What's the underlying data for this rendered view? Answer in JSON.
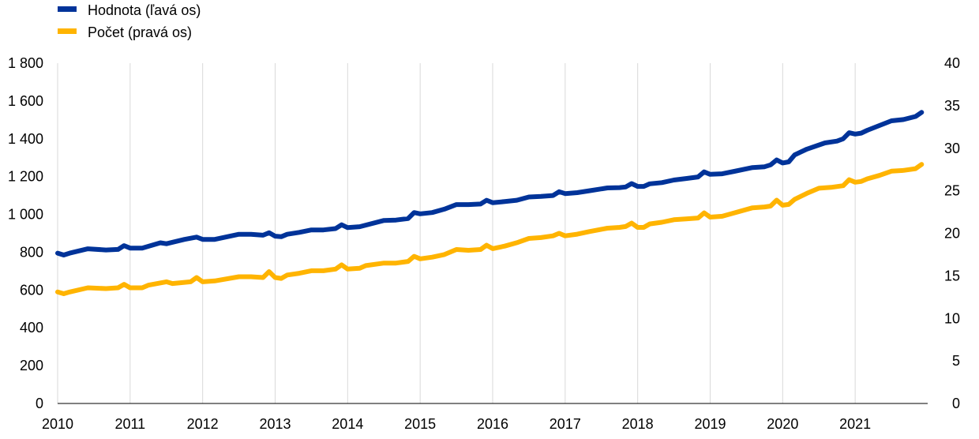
{
  "chart_data": {
    "type": "line",
    "title": "",
    "legend_position": "top-left",
    "grid": true,
    "x_axis": {
      "start_year": 2010,
      "end_year": 2022,
      "tick_labels": [
        "2010",
        "2011",
        "2012",
        "2013",
        "2014",
        "2015",
        "2016",
        "2017",
        "2018",
        "2019",
        "2020",
        "2021"
      ]
    },
    "y_left": {
      "ylim": [
        0,
        1800
      ],
      "tick_values": [
        0,
        200,
        400,
        600,
        800,
        1000,
        1200,
        1400,
        1600,
        1800
      ],
      "tick_labels": [
        "0",
        "200",
        "400",
        "600",
        "800",
        "1 000",
        "1 200",
        "1 400",
        "1 600",
        "1 800"
      ]
    },
    "y_right": {
      "ylim": [
        0,
        40
      ],
      "tick_values": [
        0,
        5,
        10,
        15,
        20,
        25,
        30,
        35,
        40
      ],
      "tick_labels": [
        "0",
        "5",
        "10",
        "15",
        "20",
        "25",
        "30",
        "35",
        "40"
      ]
    },
    "series": [
      {
        "name": "Hodnota (ľavá os)",
        "axis": "left",
        "color": "#003399",
        "points": [
          [
            "2010-01",
            795
          ],
          [
            "2010-02",
            785
          ],
          [
            "2010-03",
            795
          ],
          [
            "2010-06",
            818
          ],
          [
            "2010-09",
            812
          ],
          [
            "2010-11",
            815
          ],
          [
            "2010-12",
            835
          ],
          [
            "2011-01",
            822
          ],
          [
            "2011-03",
            822
          ],
          [
            "2011-06",
            850
          ],
          [
            "2011-07",
            845
          ],
          [
            "2011-10",
            868
          ],
          [
            "2011-12",
            880
          ],
          [
            "2012-01",
            868
          ],
          [
            "2012-03",
            868
          ],
          [
            "2012-07",
            895
          ],
          [
            "2012-09",
            895
          ],
          [
            "2012-11",
            890
          ],
          [
            "2012-12",
            903
          ],
          [
            "2013-01",
            885
          ],
          [
            "2013-02",
            882
          ],
          [
            "2013-03",
            895
          ],
          [
            "2013-05",
            905
          ],
          [
            "2013-07",
            918
          ],
          [
            "2013-09",
            918
          ],
          [
            "2013-11",
            925
          ],
          [
            "2013-12",
            945
          ],
          [
            "2014-01",
            930
          ],
          [
            "2014-03",
            935
          ],
          [
            "2014-07",
            968
          ],
          [
            "2014-09",
            970
          ],
          [
            "2014-11",
            978
          ],
          [
            "2014-12",
            1010
          ],
          [
            "2015-01",
            1003
          ],
          [
            "2015-03",
            1010
          ],
          [
            "2015-05",
            1028
          ],
          [
            "2015-07",
            1052
          ],
          [
            "2015-09",
            1052
          ],
          [
            "2015-11",
            1055
          ],
          [
            "2015-12",
            1075
          ],
          [
            "2016-01",
            1062
          ],
          [
            "2016-03",
            1068
          ],
          [
            "2016-05",
            1075
          ],
          [
            "2016-07",
            1092
          ],
          [
            "2016-09",
            1095
          ],
          [
            "2016-11",
            1100
          ],
          [
            "2016-12",
            1120
          ],
          [
            "2017-01",
            1110
          ],
          [
            "2017-03",
            1115
          ],
          [
            "2017-05",
            1125
          ],
          [
            "2017-08",
            1140
          ],
          [
            "2017-10",
            1142
          ],
          [
            "2017-11",
            1145
          ],
          [
            "2017-12",
            1163
          ],
          [
            "2018-01",
            1148
          ],
          [
            "2018-02",
            1148
          ],
          [
            "2018-03",
            1162
          ],
          [
            "2018-05",
            1168
          ],
          [
            "2018-07",
            1182
          ],
          [
            "2018-09",
            1190
          ],
          [
            "2018-11",
            1198
          ],
          [
            "2018-12",
            1225
          ],
          [
            "2019-01",
            1212
          ],
          [
            "2019-03",
            1215
          ],
          [
            "2019-05",
            1228
          ],
          [
            "2019-08",
            1248
          ],
          [
            "2019-10",
            1252
          ],
          [
            "2019-11",
            1262
          ],
          [
            "2019-12",
            1288
          ],
          [
            "2020-01",
            1272
          ],
          [
            "2020-02",
            1278
          ],
          [
            "2020-03",
            1315
          ],
          [
            "2020-05",
            1345
          ],
          [
            "2020-08",
            1378
          ],
          [
            "2020-10",
            1388
          ],
          [
            "2020-11",
            1400
          ],
          [
            "2020-12",
            1432
          ],
          [
            "2021-01",
            1425
          ],
          [
            "2021-02",
            1430
          ],
          [
            "2021-03",
            1445
          ],
          [
            "2021-05",
            1470
          ],
          [
            "2021-07",
            1495
          ],
          [
            "2021-09",
            1502
          ],
          [
            "2021-11",
            1518
          ],
          [
            "2021-12",
            1540
          ]
        ]
      },
      {
        "name": "Počet (pravá os)",
        "axis": "right",
        "color": "#ffb400",
        "points": [
          [
            "2010-01",
            13.1
          ],
          [
            "2010-02",
            12.9
          ],
          [
            "2010-03",
            13.1
          ],
          [
            "2010-06",
            13.6
          ],
          [
            "2010-09",
            13.5
          ],
          [
            "2010-11",
            13.6
          ],
          [
            "2010-12",
            14.0
          ],
          [
            "2011-01",
            13.6
          ],
          [
            "2011-03",
            13.6
          ],
          [
            "2011-04",
            13.9
          ],
          [
            "2011-07",
            14.3
          ],
          [
            "2011-08",
            14.1
          ],
          [
            "2011-11",
            14.3
          ],
          [
            "2011-12",
            14.8
          ],
          [
            "2012-01",
            14.3
          ],
          [
            "2012-03",
            14.4
          ],
          [
            "2012-07",
            14.9
          ],
          [
            "2012-09",
            14.9
          ],
          [
            "2012-11",
            14.8
          ],
          [
            "2012-12",
            15.5
          ],
          [
            "2013-01",
            14.8
          ],
          [
            "2013-02",
            14.7
          ],
          [
            "2013-03",
            15.1
          ],
          [
            "2013-05",
            15.3
          ],
          [
            "2013-07",
            15.6
          ],
          [
            "2013-09",
            15.6
          ],
          [
            "2013-11",
            15.8
          ],
          [
            "2013-12",
            16.3
          ],
          [
            "2014-01",
            15.8
          ],
          [
            "2014-03",
            15.9
          ],
          [
            "2014-04",
            16.2
          ],
          [
            "2014-07",
            16.5
          ],
          [
            "2014-09",
            16.5
          ],
          [
            "2014-11",
            16.7
          ],
          [
            "2014-12",
            17.3
          ],
          [
            "2015-01",
            17.0
          ],
          [
            "2015-03",
            17.2
          ],
          [
            "2015-05",
            17.5
          ],
          [
            "2015-07",
            18.1
          ],
          [
            "2015-09",
            18.0
          ],
          [
            "2015-11",
            18.1
          ],
          [
            "2015-12",
            18.6
          ],
          [
            "2016-01",
            18.2
          ],
          [
            "2016-03",
            18.5
          ],
          [
            "2016-05",
            18.9
          ],
          [
            "2016-07",
            19.4
          ],
          [
            "2016-09",
            19.5
          ],
          [
            "2016-11",
            19.7
          ],
          [
            "2016-12",
            20.0
          ],
          [
            "2017-01",
            19.7
          ],
          [
            "2017-03",
            19.9
          ],
          [
            "2017-05",
            20.2
          ],
          [
            "2017-08",
            20.6
          ],
          [
            "2017-10",
            20.7
          ],
          [
            "2017-11",
            20.8
          ],
          [
            "2017-12",
            21.2
          ],
          [
            "2018-01",
            20.7
          ],
          [
            "2018-02",
            20.7
          ],
          [
            "2018-03",
            21.1
          ],
          [
            "2018-05",
            21.3
          ],
          [
            "2018-07",
            21.6
          ],
          [
            "2018-09",
            21.7
          ],
          [
            "2018-11",
            21.8
          ],
          [
            "2018-12",
            22.4
          ],
          [
            "2019-01",
            21.9
          ],
          [
            "2019-03",
            22.0
          ],
          [
            "2019-05",
            22.4
          ],
          [
            "2019-08",
            23.0
          ],
          [
            "2019-10",
            23.1
          ],
          [
            "2019-11",
            23.2
          ],
          [
            "2019-12",
            23.9
          ],
          [
            "2020-01",
            23.3
          ],
          [
            "2020-02",
            23.4
          ],
          [
            "2020-03",
            24.0
          ],
          [
            "2020-05",
            24.7
          ],
          [
            "2020-07",
            25.3
          ],
          [
            "2020-09",
            25.4
          ],
          [
            "2020-11",
            25.6
          ],
          [
            "2020-12",
            26.3
          ],
          [
            "2021-01",
            26.0
          ],
          [
            "2021-02",
            26.1
          ],
          [
            "2021-03",
            26.4
          ],
          [
            "2021-05",
            26.8
          ],
          [
            "2021-07",
            27.3
          ],
          [
            "2021-09",
            27.4
          ],
          [
            "2021-11",
            27.6
          ],
          [
            "2021-12",
            28.1
          ]
        ]
      }
    ]
  }
}
